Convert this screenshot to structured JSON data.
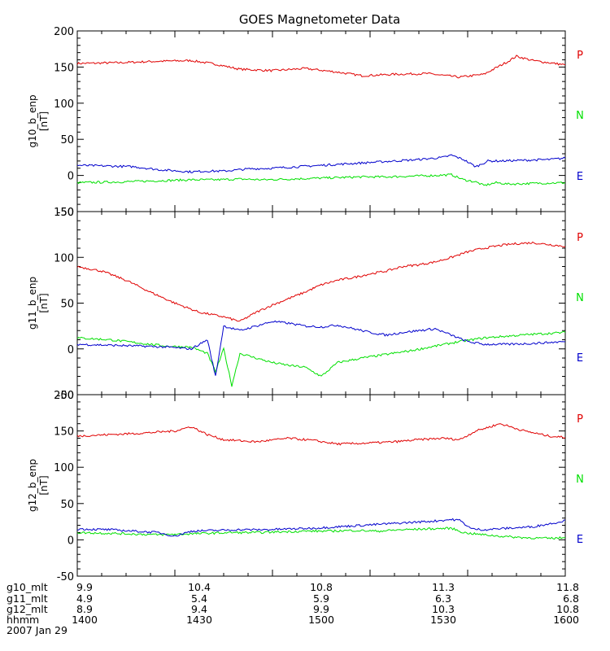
{
  "title": "GOES Magnetometer Data",
  "date": "2007 Jan 29",
  "colors": {
    "P": "#e00000",
    "N": "#00e000",
    "E": "#0000cc"
  },
  "legend_letters": [
    "P",
    "N",
    "E"
  ],
  "xaxis": {
    "row_labels": [
      "g10_mlt",
      "g11_mlt",
      "g12_mlt",
      "hhmm"
    ],
    "ticks": [
      {
        "g10_mlt": "9.9",
        "g11_mlt": "4.9",
        "g12_mlt": "8.9",
        "hhmm": "1400"
      },
      {
        "g10_mlt": "10.4",
        "g11_mlt": "5.4",
        "g12_mlt": "9.4",
        "hhmm": "1430"
      },
      {
        "g10_mlt": "10.8",
        "g11_mlt": "5.9",
        "g12_mlt": "9.9",
        "hhmm": "1500"
      },
      {
        "g10_mlt": "11.3",
        "g11_mlt": "6.3",
        "g12_mlt": "10.3",
        "hhmm": "1530"
      },
      {
        "g10_mlt": "11.8",
        "g11_mlt": "6.8",
        "g12_mlt": "10.8",
        "hhmm": "1600"
      }
    ]
  },
  "chart_data": [
    {
      "type": "line",
      "ylabel": "g10_b_enp",
      "yunit": "[nT]",
      "ylim": [
        -50,
        200
      ],
      "yticks": [
        -50,
        0,
        50,
        100,
        150,
        200
      ],
      "xlim": [
        0,
        120
      ],
      "series": [
        {
          "name": "P",
          "color": "#e00000",
          "x": [
            0,
            10,
            20,
            28,
            34,
            40,
            48,
            56,
            64,
            70,
            78,
            86,
            94,
            100,
            106,
            108,
            112,
            120
          ],
          "y": [
            155,
            156,
            158,
            159,
            154,
            147,
            145,
            148,
            143,
            138,
            140,
            141,
            136,
            140,
            158,
            165,
            159,
            153
          ]
        },
        {
          "name": "N",
          "color": "#00e000",
          "x": [
            0,
            10,
            16,
            22,
            28,
            34,
            40,
            46,
            52,
            58,
            64,
            70,
            76,
            82,
            88,
            92,
            95,
            98,
            100,
            103,
            106,
            112,
            120
          ],
          "y": [
            -10,
            -9,
            -8,
            -7,
            -6,
            -6,
            -5,
            -6,
            -5,
            -4,
            -3,
            -2,
            -2,
            -1,
            0,
            1,
            -6,
            -9,
            -14,
            -10,
            -12,
            -11,
            -10
          ]
        },
        {
          "name": "E",
          "color": "#0000cc",
          "x": [
            0,
            8,
            14,
            20,
            28,
            32,
            36,
            42,
            48,
            54,
            60,
            66,
            72,
            78,
            84,
            90,
            92,
            95,
            98,
            101,
            104,
            110,
            116,
            120
          ],
          "y": [
            14,
            13,
            12,
            8,
            5,
            6,
            6,
            9,
            10,
            12,
            14,
            16,
            18,
            20,
            22,
            25,
            28,
            22,
            12,
            20,
            20,
            21,
            22,
            24
          ]
        }
      ]
    },
    {
      "type": "line",
      "ylabel": "g11_b_enp",
      "yunit": "[nT]",
      "ylim": [
        -50,
        150
      ],
      "yticks": [
        -50,
        0,
        50,
        100,
        150
      ],
      "xlim": [
        0,
        120
      ],
      "series": [
        {
          "name": "P",
          "color": "#e00000",
          "x": [
            0,
            6,
            12,
            18,
            24,
            30,
            36,
            40,
            44,
            48,
            52,
            56,
            60,
            64,
            68,
            72,
            76,
            80,
            84,
            88,
            92,
            96,
            100,
            104,
            108,
            112,
            116,
            120
          ],
          "y": [
            90,
            85,
            75,
            62,
            50,
            40,
            35,
            30,
            40,
            48,
            55,
            62,
            70,
            75,
            78,
            82,
            85,
            90,
            92,
            95,
            100,
            106,
            110,
            113,
            115,
            116,
            114,
            112
          ]
        },
        {
          "name": "N",
          "color": "#00e000",
          "x": [
            0,
            8,
            16,
            22,
            28,
            32,
            34,
            36,
            38,
            40,
            44,
            48,
            52,
            56,
            60,
            64,
            70,
            76,
            82,
            88,
            94,
            100,
            106,
            112,
            120
          ],
          "y": [
            12,
            10,
            6,
            3,
            2,
            -5,
            -25,
            0,
            -40,
            -5,
            -10,
            -15,
            -18,
            -20,
            -30,
            -15,
            -10,
            -6,
            -2,
            3,
            8,
            12,
            14,
            16,
            18
          ]
        },
        {
          "name": "E",
          "color": "#0000cc",
          "x": [
            0,
            8,
            16,
            22,
            28,
            32,
            34,
            36,
            40,
            44,
            48,
            52,
            56,
            60,
            64,
            68,
            72,
            76,
            80,
            84,
            88,
            92,
            96,
            100,
            106,
            112,
            120
          ],
          "y": [
            5,
            4,
            3,
            2,
            0,
            10,
            -30,
            25,
            20,
            25,
            30,
            28,
            25,
            24,
            26,
            22,
            18,
            15,
            18,
            20,
            22,
            15,
            8,
            5,
            5,
            6,
            8
          ]
        }
      ]
    },
    {
      "type": "line",
      "ylabel": "g12_b_enp",
      "yunit": "[nT]",
      "ylim": [
        -50,
        200
      ],
      "yticks": [
        -50,
        0,
        50,
        100,
        150,
        200
      ],
      "xlim": [
        0,
        120
      ],
      "series": [
        {
          "name": "P",
          "color": "#e00000",
          "x": [
            0,
            8,
            16,
            24,
            28,
            32,
            36,
            44,
            52,
            58,
            64,
            70,
            78,
            84,
            90,
            94,
            98,
            104,
            110,
            116,
            120
          ],
          "y": [
            143,
            145,
            147,
            150,
            156,
            145,
            138,
            135,
            140,
            137,
            132,
            133,
            135,
            138,
            140,
            138,
            150,
            160,
            150,
            143,
            141
          ]
        },
        {
          "name": "N",
          "color": "#00e000",
          "x": [
            0,
            8,
            14,
            20,
            26,
            32,
            38,
            44,
            50,
            56,
            62,
            68,
            74,
            80,
            86,
            92,
            95,
            98,
            104,
            110,
            116,
            120
          ],
          "y": [
            10,
            9,
            8,
            7,
            8,
            9,
            10,
            10,
            11,
            12,
            12,
            13,
            12,
            14,
            15,
            16,
            10,
            8,
            5,
            3,
            2,
            3
          ]
        },
        {
          "name": "E",
          "color": "#0000cc",
          "x": [
            0,
            8,
            14,
            20,
            24,
            28,
            34,
            40,
            46,
            52,
            58,
            64,
            70,
            76,
            82,
            88,
            92,
            94,
            97,
            100,
            106,
            112,
            118,
            120
          ],
          "y": [
            15,
            14,
            12,
            10,
            5,
            12,
            13,
            14,
            14,
            15,
            16,
            18,
            20,
            22,
            24,
            26,
            28,
            27,
            15,
            14,
            16,
            18,
            24,
            27
          ]
        }
      ]
    }
  ]
}
